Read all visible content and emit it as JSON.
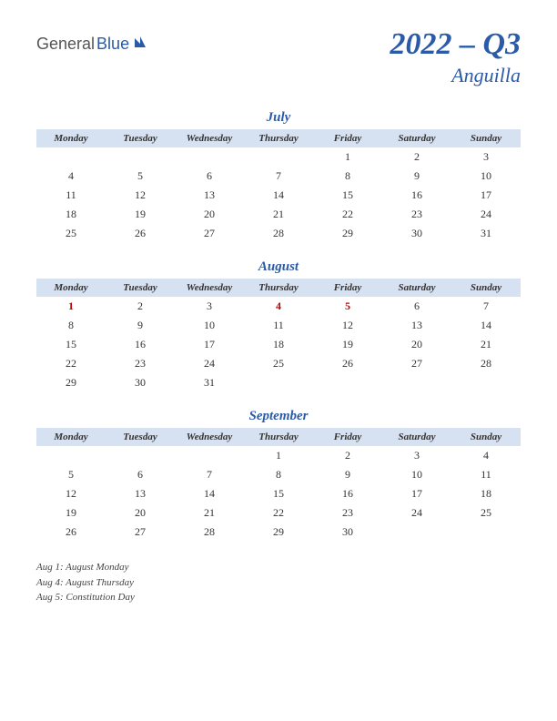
{
  "logo": {
    "part1": "General",
    "part2": "Blue"
  },
  "title": {
    "quarter": "2022 – Q3",
    "region": "Anguilla"
  },
  "day_headers": [
    "Monday",
    "Tuesday",
    "Wednesday",
    "Thursday",
    "Friday",
    "Saturday",
    "Sunday"
  ],
  "colors": {
    "accent": "#2b5ba8",
    "header_bg": "#d6e1f2",
    "holiday": "#c00000",
    "text": "#333333",
    "background": "#ffffff"
  },
  "months": [
    {
      "name": "July",
      "weeks": [
        [
          "",
          "",
          "",
          "",
          "1",
          "2",
          "3"
        ],
        [
          "4",
          "5",
          "6",
          "7",
          "8",
          "9",
          "10"
        ],
        [
          "11",
          "12",
          "13",
          "14",
          "15",
          "16",
          "17"
        ],
        [
          "18",
          "19",
          "20",
          "21",
          "22",
          "23",
          "24"
        ],
        [
          "25",
          "26",
          "27",
          "28",
          "29",
          "30",
          "31"
        ]
      ],
      "holidays": []
    },
    {
      "name": "August",
      "weeks": [
        [
          "1",
          "2",
          "3",
          "4",
          "5",
          "6",
          "7"
        ],
        [
          "8",
          "9",
          "10",
          "11",
          "12",
          "13",
          "14"
        ],
        [
          "15",
          "16",
          "17",
          "18",
          "19",
          "20",
          "21"
        ],
        [
          "22",
          "23",
          "24",
          "25",
          "26",
          "27",
          "28"
        ],
        [
          "29",
          "30",
          "31",
          "",
          "",
          "",
          ""
        ]
      ],
      "holidays": [
        "1",
        "4",
        "5"
      ]
    },
    {
      "name": "September",
      "weeks": [
        [
          "",
          "",
          "",
          "1",
          "2",
          "3",
          "4"
        ],
        [
          "5",
          "6",
          "7",
          "8",
          "9",
          "10",
          "11"
        ],
        [
          "12",
          "13",
          "14",
          "15",
          "16",
          "17",
          "18"
        ],
        [
          "19",
          "20",
          "21",
          "22",
          "23",
          "24",
          "25"
        ],
        [
          "26",
          "27",
          "28",
          "29",
          "30",
          "",
          ""
        ]
      ],
      "holidays": []
    }
  ],
  "holiday_list": [
    "Aug 1: August Monday",
    "Aug 4: August Thursday",
    "Aug 5: Constitution Day"
  ]
}
